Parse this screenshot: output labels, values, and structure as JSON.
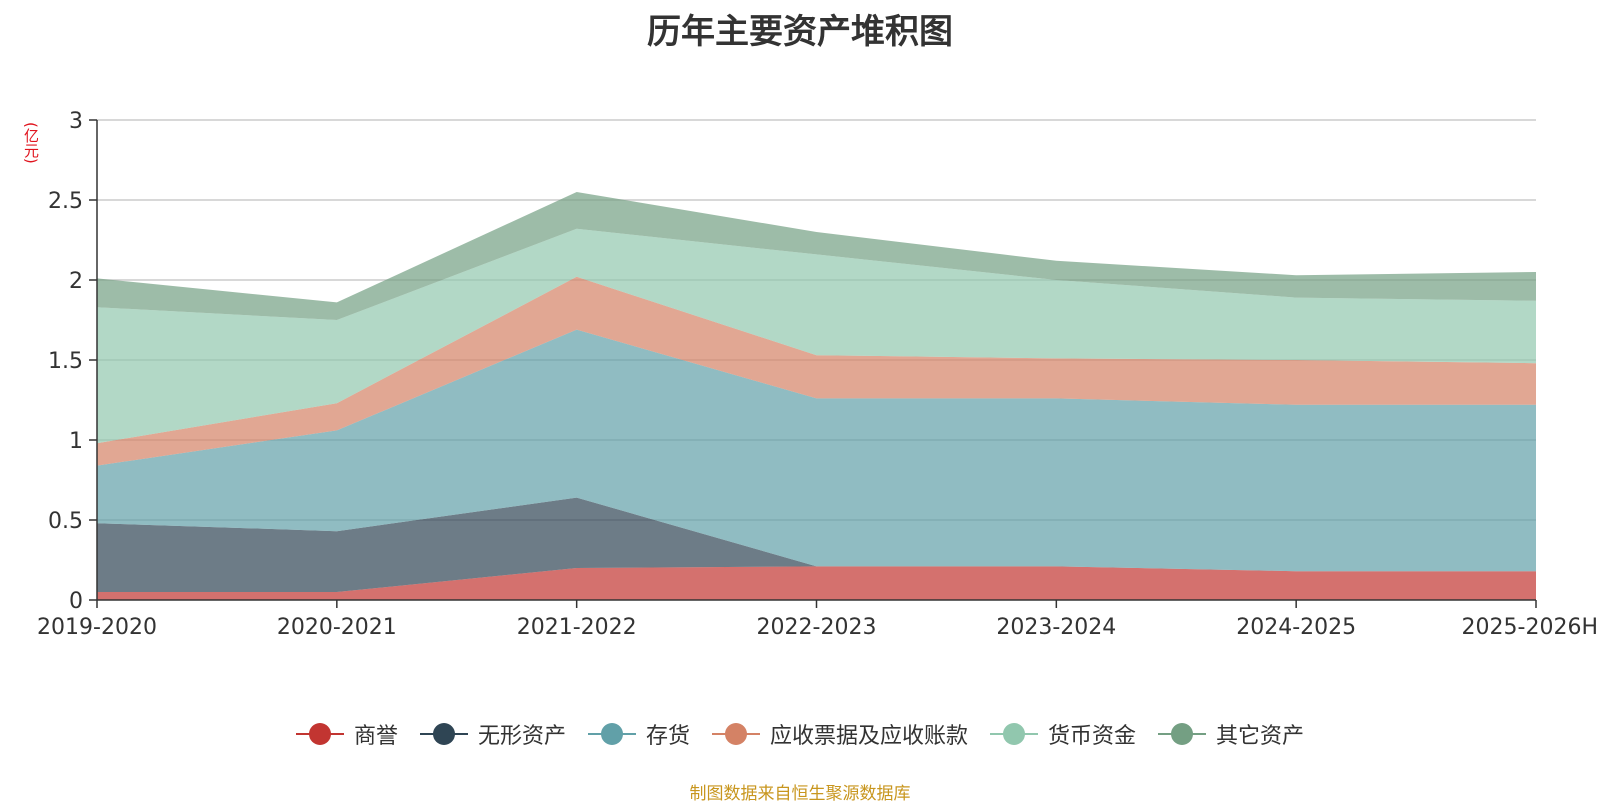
{
  "chart_data": {
    "type": "area",
    "stacked": true,
    "title": "历年主要资产堆积图",
    "unit_label": "(亿元)",
    "categories": [
      "2019-2020",
      "2020-2021",
      "2021-2022",
      "2022-2023",
      "2023-2024",
      "2024-2025",
      "2025-2026H"
    ],
    "ylim": [
      0,
      3
    ],
    "yticks": [
      "0",
      "0.5",
      "1",
      "1.5",
      "2",
      "2.5",
      "3"
    ],
    "grid": true,
    "legend_position": "bottom",
    "series": [
      {
        "name": "商誉",
        "color": "#c23531",
        "values": [
          0.05,
          0.05,
          0.2,
          0.21,
          0.21,
          0.18,
          0.18
        ]
      },
      {
        "name": "无形资产",
        "color": "#2f4554",
        "values": [
          0.43,
          0.38,
          0.44,
          0.0,
          0.0,
          0.0,
          0.0
        ]
      },
      {
        "name": "存货",
        "color": "#61a0a8",
        "values": [
          0.36,
          0.63,
          1.05,
          1.05,
          1.05,
          1.04,
          1.04
        ]
      },
      {
        "name": "应收票据及应收账款",
        "color": "#d48265",
        "values": [
          0.14,
          0.17,
          0.33,
          0.27,
          0.25,
          0.28,
          0.26
        ]
      },
      {
        "name": "货币资金",
        "color": "#91c7ae",
        "values": [
          0.85,
          0.52,
          0.3,
          0.63,
          0.49,
          0.39,
          0.39
        ]
      },
      {
        "name": "其它资产",
        "color": "#749f83",
        "values": [
          0.18,
          0.11,
          0.23,
          0.14,
          0.12,
          0.14,
          0.18
        ]
      }
    ],
    "source": "制图数据来自恒生聚源数据库"
  }
}
